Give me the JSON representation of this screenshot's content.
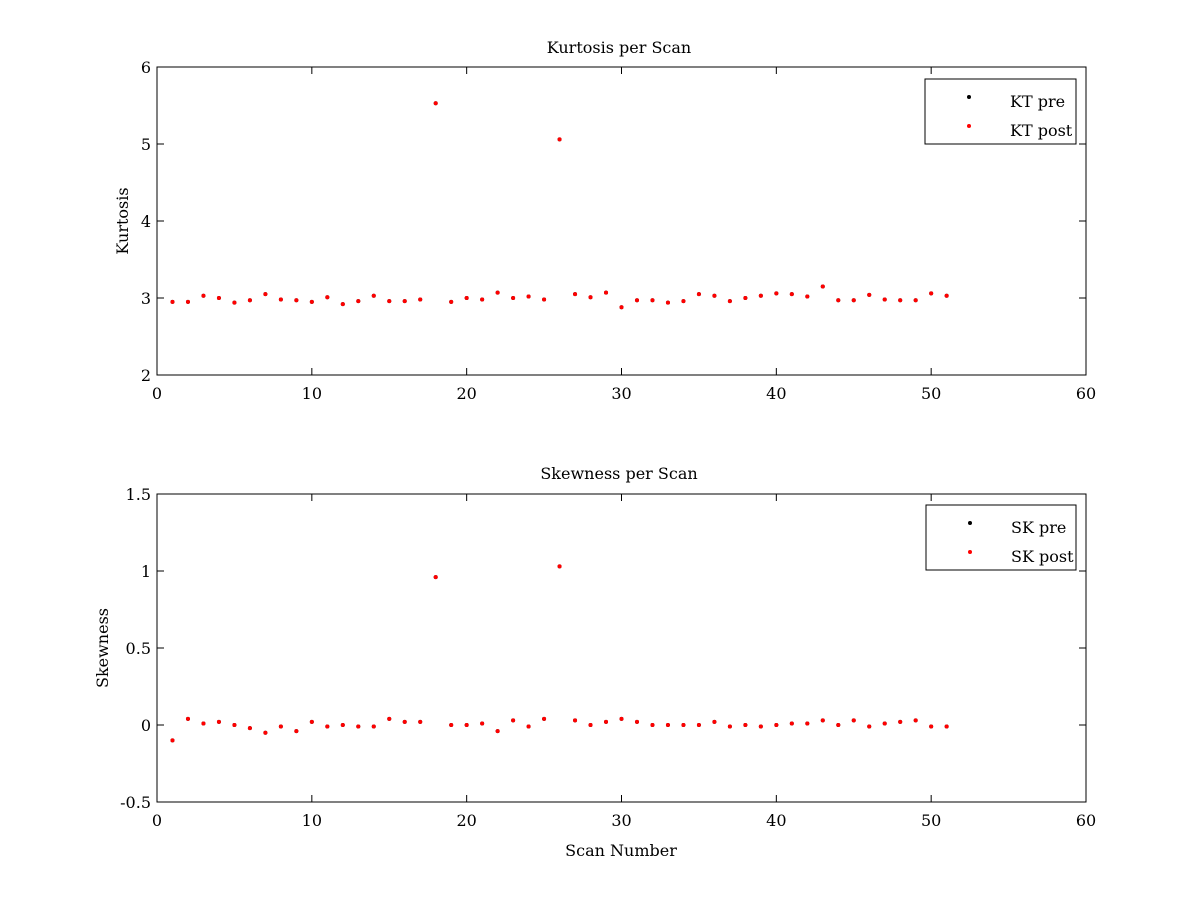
{
  "chart_data": [
    {
      "type": "scatter",
      "title": "Kurtosis per Scan",
      "xlabel": "",
      "ylabel": "Kurtosis",
      "xlim": [
        0,
        60
      ],
      "ylim": [
        2,
        6
      ],
      "xticks": [
        0,
        10,
        20,
        30,
        40,
        50,
        60
      ],
      "yticks": [
        2,
        3,
        4,
        5,
        6
      ],
      "grid": false,
      "legend_position": "top-right",
      "x": [
        1,
        2,
        3,
        4,
        5,
        6,
        7,
        8,
        9,
        10,
        11,
        12,
        13,
        14,
        15,
        16,
        17,
        18,
        19,
        20,
        21,
        22,
        23,
        24,
        25,
        26,
        27,
        28,
        29,
        30,
        31,
        32,
        33,
        34,
        35,
        36,
        37,
        38,
        39,
        40,
        41,
        42,
        43,
        44,
        45,
        46,
        47,
        48,
        49,
        50,
        51
      ],
      "series": [
        {
          "name": "KT pre",
          "color": "#000000",
          "values": [
            2.95,
            2.95,
            3.03,
            3.0,
            2.94,
            2.97,
            3.05,
            2.98,
            2.97,
            2.95,
            3.01,
            2.92,
            2.96,
            3.03,
            2.96,
            2.96,
            2.98,
            5.53,
            2.95,
            3.0,
            2.98,
            3.07,
            3.0,
            3.02,
            2.98,
            5.06,
            3.05,
            3.01,
            3.07,
            2.88,
            2.97,
            2.97,
            2.94,
            2.96,
            3.05,
            3.03,
            2.96,
            3.0,
            3.03,
            3.06,
            3.05,
            3.02,
            3.15,
            2.97,
            2.97,
            3.04,
            2.98,
            2.97,
            2.97,
            3.06,
            3.03
          ]
        },
        {
          "name": "KT post",
          "color": "#ff0000",
          "values": [
            2.95,
            2.95,
            3.03,
            3.0,
            2.94,
            2.97,
            3.05,
            2.98,
            2.97,
            2.95,
            3.01,
            2.92,
            2.96,
            3.03,
            2.96,
            2.96,
            2.98,
            5.53,
            2.95,
            3.0,
            2.98,
            3.07,
            3.0,
            3.02,
            2.98,
            5.06,
            3.05,
            3.01,
            3.07,
            2.88,
            2.97,
            2.97,
            2.94,
            2.96,
            3.05,
            3.03,
            2.96,
            3.0,
            3.03,
            3.06,
            3.05,
            3.02,
            3.15,
            2.97,
            2.97,
            3.04,
            2.98,
            2.97,
            2.97,
            3.06,
            3.03
          ]
        }
      ]
    },
    {
      "type": "scatter",
      "title": "Skewness per Scan",
      "xlabel": "Scan Number",
      "ylabel": "Skewness",
      "xlim": [
        0,
        60
      ],
      "ylim": [
        -0.5,
        1.5
      ],
      "xticks": [
        0,
        10,
        20,
        30,
        40,
        50,
        60
      ],
      "yticks": [
        -0.5,
        0,
        0.5,
        1,
        1.5
      ],
      "ytick_labels": [
        "-0.5",
        "0",
        "0.5",
        "1",
        "1.5"
      ],
      "grid": false,
      "legend_position": "top-right",
      "x": [
        1,
        2,
        3,
        4,
        5,
        6,
        7,
        8,
        9,
        10,
        11,
        12,
        13,
        14,
        15,
        16,
        17,
        18,
        19,
        20,
        21,
        22,
        23,
        24,
        25,
        26,
        27,
        28,
        29,
        30,
        31,
        32,
        33,
        34,
        35,
        36,
        37,
        38,
        39,
        40,
        41,
        42,
        43,
        44,
        45,
        46,
        47,
        48,
        49,
        50,
        51
      ],
      "series": [
        {
          "name": "SK pre",
          "color": "#000000",
          "values": [
            -0.1,
            0.04,
            0.01,
            0.02,
            0.0,
            -0.02,
            -0.05,
            -0.01,
            -0.04,
            0.02,
            -0.01,
            0.0,
            -0.01,
            -0.01,
            0.04,
            0.02,
            0.02,
            0.96,
            0.0,
            0.0,
            0.01,
            -0.04,
            0.03,
            -0.01,
            0.04,
            1.03,
            0.03,
            0.0,
            0.02,
            0.04,
            0.02,
            0.0,
            0.0,
            0.0,
            0.0,
            0.02,
            -0.01,
            0.0,
            -0.01,
            0.0,
            0.01,
            0.01,
            0.03,
            0.0,
            0.03,
            -0.01,
            0.01,
            0.02,
            0.03,
            -0.01,
            -0.01
          ]
        },
        {
          "name": "SK post",
          "color": "#ff0000",
          "values": [
            -0.1,
            0.04,
            0.01,
            0.02,
            0.0,
            -0.02,
            -0.05,
            -0.01,
            -0.04,
            0.02,
            -0.01,
            0.0,
            -0.01,
            -0.01,
            0.04,
            0.02,
            0.02,
            0.96,
            0.0,
            0.0,
            0.01,
            -0.04,
            0.03,
            -0.01,
            0.04,
            1.03,
            0.03,
            0.0,
            0.02,
            0.04,
            0.02,
            0.0,
            0.0,
            0.0,
            0.0,
            0.02,
            -0.01,
            0.0,
            -0.01,
            0.0,
            0.01,
            0.01,
            0.03,
            0.0,
            0.03,
            -0.01,
            0.01,
            0.02,
            0.03,
            -0.01,
            -0.01
          ]
        }
      ]
    }
  ]
}
